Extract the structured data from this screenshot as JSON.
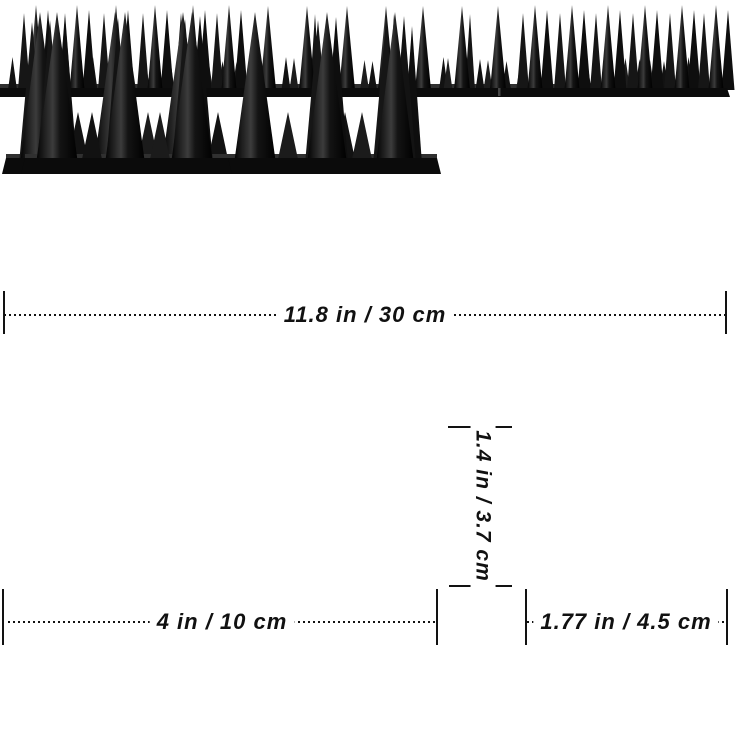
{
  "diagram": {
    "background": "#ffffff",
    "ink": "#121212",
    "spike_color": "#0b0b0b",
    "measurements": {
      "top_strip_length": "11.8 in / 30 cm",
      "left_piece_length": "4 in / 10 cm",
      "right_piece_length": "1.77 in / 4.5 cm",
      "spike_height": "1.4 in / 3.7 cm"
    }
  }
}
